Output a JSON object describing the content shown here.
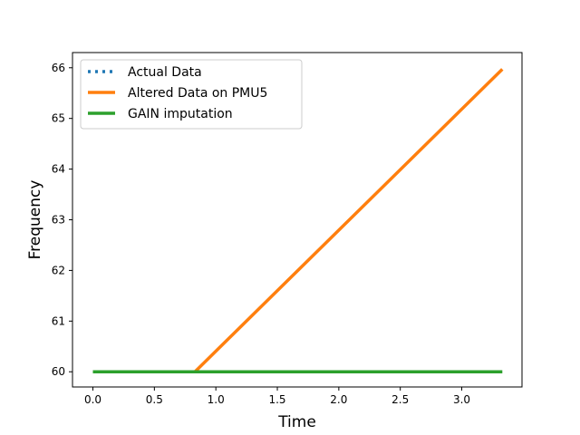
{
  "chart_data": {
    "type": "line",
    "title": "",
    "xlabel": "Time",
    "ylabel": "Frequency",
    "xlim": [
      -0.166,
      3.49
    ],
    "ylim": [
      59.7,
      66.3
    ],
    "xticks": [
      "0.0",
      "0.5",
      "1.0",
      "1.5",
      "2.0",
      "2.5",
      "3.0"
    ],
    "yticks": [
      "60",
      "61",
      "62",
      "63",
      "64",
      "65",
      "66"
    ],
    "grid": false,
    "legend_position": "top-left",
    "series": [
      {
        "name": "Actual Data",
        "color": "#1f77b4",
        "style": "dotted",
        "x": [
          0.0,
          3.33
        ],
        "y": [
          60.0,
          60.0
        ]
      },
      {
        "name": "Altered Data on PMU5",
        "color": "#ff7f0e",
        "style": "solid",
        "x": [
          0.0,
          0.83,
          3.33
        ],
        "y": [
          60.0,
          60.0,
          65.97
        ]
      },
      {
        "name": "GAIN imputation",
        "color": "#2ca02c",
        "style": "solid",
        "x": [
          0.0,
          3.33
        ],
        "y": [
          60.0,
          60.0
        ]
      }
    ]
  }
}
